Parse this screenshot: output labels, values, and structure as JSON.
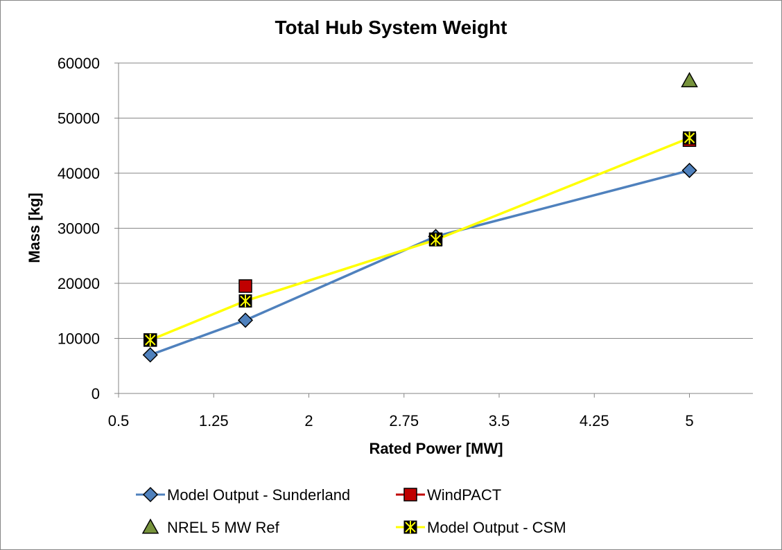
{
  "chart_data": {
    "type": "line",
    "title": "Total Hub System Weight",
    "xlabel": "Rated Power [MW]",
    "ylabel": "Mass [kg]",
    "xlim": [
      0.5,
      5.5
    ],
    "ylim": [
      0,
      60000
    ],
    "x_ticks": [
      0.5,
      1.25,
      2,
      2.75,
      3.5,
      4.25,
      5
    ],
    "x_tick_labels": [
      "0.5",
      "1.25",
      "2",
      "2.75",
      "3.5",
      "4.25",
      "5"
    ],
    "y_ticks": [
      0,
      10000,
      20000,
      30000,
      40000,
      50000,
      60000
    ],
    "y_tick_labels": [
      "0",
      "10000",
      "20000",
      "30000",
      "40000",
      "50000",
      "60000"
    ],
    "grid": "horizontal",
    "legend_position": "bottom",
    "series": [
      {
        "name": "Model Output - Sunderland",
        "color": "#4f81bd",
        "marker": "diamond",
        "line": true,
        "points": [
          [
            0.75,
            7000
          ],
          [
            1.5,
            13300
          ],
          [
            3.0,
            28500
          ],
          [
            5.0,
            40500
          ]
        ]
      },
      {
        "name": "WindPACT",
        "color": "#c00000",
        "marker": "square",
        "line": false,
        "points": [
          [
            0.75,
            9700
          ],
          [
            1.5,
            19500
          ],
          [
            3.0,
            28000
          ],
          [
            5.0,
            46000
          ]
        ]
      },
      {
        "name": "NREL 5 MW Ref",
        "color": "#77933c",
        "marker": "triangle",
        "line": false,
        "points": [
          [
            5.0,
            56800
          ]
        ]
      },
      {
        "name": "Model Output - CSM",
        "color": "#ffff00",
        "marker": "asterisk-square",
        "line": true,
        "points": [
          [
            0.75,
            9700
          ],
          [
            1.5,
            16800
          ],
          [
            3.0,
            27900
          ],
          [
            5.0,
            46400
          ]
        ]
      }
    ]
  }
}
